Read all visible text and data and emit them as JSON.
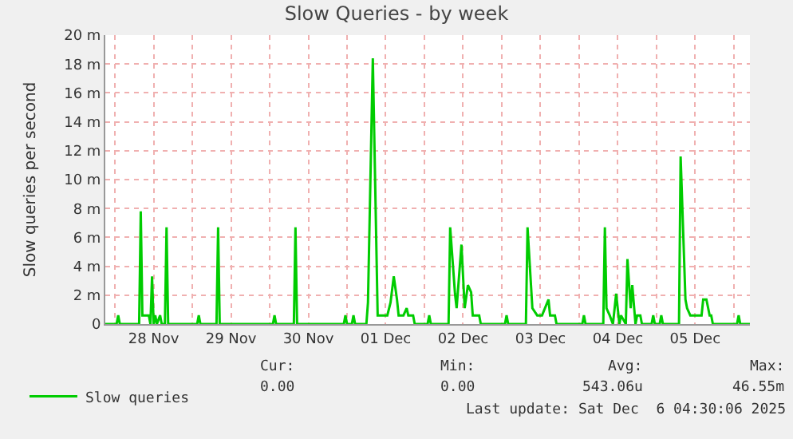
{
  "chart_data": {
    "type": "line",
    "title": "Slow Queries - by week",
    "ylabel": "Slow queries per second",
    "x": [
      "2025-11-27T21:00",
      "2025-11-28T00:30",
      "2025-11-28T01:00",
      "2025-11-28T01:30",
      "2025-11-28T07:30",
      "2025-11-28T08:00",
      "2025-11-28T08:30",
      "2025-11-28T09:30",
      "2025-11-28T10:30",
      "2025-11-28T11:00",
      "2025-11-28T11:30",
      "2025-11-28T12:00",
      "2025-11-28T12:30",
      "2025-11-28T13:00",
      "2025-11-28T14:00",
      "2025-11-28T14:30",
      "2025-11-28T15:30",
      "2025-11-28T16:00",
      "2025-11-28T16:30",
      "2025-11-29T01:30",
      "2025-11-29T02:00",
      "2025-11-29T02:30",
      "2025-11-29T07:30",
      "2025-11-29T08:00",
      "2025-11-29T08:30",
      "2025-11-30T01:00",
      "2025-11-30T01:30",
      "2025-11-30T02:00",
      "2025-11-30T07:30",
      "2025-11-30T08:00",
      "2025-11-30T08:30",
      "2025-11-30T23:00",
      "2025-11-30T23:30",
      "2025-12-01T00:00",
      "2025-12-01T01:30",
      "2025-12-01T02:00",
      "2025-12-01T02:30",
      "2025-12-01T06:00",
      "2025-12-01T06:30",
      "2025-12-01T08:00",
      "2025-12-01T09:30",
      "2025-12-01T11:30",
      "2025-12-01T12:30",
      "2025-12-01T13:30",
      "2025-12-01T14:30",
      "2025-12-01T15:30",
      "2025-12-01T16:00",
      "2025-12-01T17:30",
      "2025-12-01T18:30",
      "2025-12-01T19:00",
      "2025-12-01T20:00",
      "2025-12-01T20:30",
      "2025-12-01T21:00",
      "2025-12-02T01:00",
      "2025-12-02T01:30",
      "2025-12-02T02:00",
      "2025-12-02T07:30",
      "2025-12-02T08:00",
      "2025-12-02T09:30",
      "2025-12-02T10:00",
      "2025-12-02T11:30",
      "2025-12-02T12:30",
      "2025-12-02T13:30",
      "2025-12-02T14:30",
      "2025-12-02T15:00",
      "2025-12-02T16:00",
      "2025-12-02T17:00",
      "2025-12-02T17:30",
      "2025-12-03T01:00",
      "2025-12-03T01:30",
      "2025-12-03T02:00",
      "2025-12-03T07:30",
      "2025-12-03T08:00",
      "2025-12-03T09:30",
      "2025-12-03T11:00",
      "2025-12-03T12:30",
      "2025-12-03T14:30",
      "2025-12-03T15:00",
      "2025-12-03T16:30",
      "2025-12-03T17:00",
      "2025-12-04T01:00",
      "2025-12-04T01:30",
      "2025-12-04T02:00",
      "2025-12-04T07:30",
      "2025-12-04T08:00",
      "2025-12-04T08:30",
      "2025-12-04T09:30",
      "2025-12-04T10:30",
      "2025-12-04T11:30",
      "2025-12-04T12:30",
      "2025-12-04T13:00",
      "2025-12-04T14:30",
      "2025-12-04T15:00",
      "2025-12-04T16:00",
      "2025-12-04T16:30",
      "2025-12-04T17:30",
      "2025-12-04T18:00",
      "2025-12-04T19:00",
      "2025-12-04T19:30",
      "2025-12-04T22:30",
      "2025-12-04T23:00",
      "2025-12-04T23:30",
      "2025-12-05T01:00",
      "2025-12-05T01:30",
      "2025-12-05T02:00",
      "2025-12-05T07:00",
      "2025-12-05T07:30",
      "2025-12-05T09:00",
      "2025-12-05T09:30",
      "2025-12-05T10:30",
      "2025-12-05T12:00",
      "2025-12-05T14:00",
      "2025-12-05T14:30",
      "2025-12-05T15:30",
      "2025-12-05T16:30",
      "2025-12-05T17:00",
      "2025-12-05T17:30",
      "2025-12-06T01:00",
      "2025-12-06T01:30",
      "2025-12-06T02:00",
      "2025-12-06T05:00"
    ],
    "series": [
      {
        "name": "Slow queries",
        "color": "#00cc00",
        "values": [
          0,
          0,
          0.6,
          0,
          0,
          7.8,
          0.6,
          0.6,
          0.6,
          0,
          3.3,
          0,
          0.6,
          0,
          0.6,
          0,
          0,
          6.7,
          0,
          0,
          0.6,
          0,
          0,
          6.7,
          0,
          0,
          0.6,
          0,
          0,
          6.7,
          0,
          0,
          0.6,
          0,
          0,
          0.6,
          0,
          0,
          1.5,
          18.4,
          0.6,
          0.6,
          0.6,
          1.5,
          3.3,
          1.7,
          0.6,
          0.6,
          1.1,
          0.6,
          0.6,
          0.6,
          0,
          0,
          0.6,
          0,
          0,
          6.7,
          2.1,
          1.1,
          5.5,
          1.1,
          2.7,
          2.2,
          0.6,
          0.6,
          0.6,
          0,
          0,
          0.6,
          0,
          0,
          6.7,
          1.1,
          0.6,
          0.6,
          1.7,
          0.6,
          0.6,
          0,
          0,
          0.6,
          0,
          0,
          6.7,
          1.1,
          0.6,
          0,
          2.1,
          0,
          0.6,
          0,
          4.5,
          1.1,
          2.7,
          0,
          0.6,
          0.6,
          0,
          0,
          0.6,
          0,
          0,
          0.6,
          0,
          0,
          11.6,
          1.7,
          1.1,
          0.6,
          0.6,
          0.6,
          1.7,
          1.7,
          0.6,
          0.6,
          0,
          0,
          0.6,
          0,
          0
        ]
      }
    ],
    "xlim": [
      "2025-11-27T21:00",
      "2025-12-06T05:00"
    ],
    "xticks": [
      {
        "value": "2025-11-28T00:00",
        "label": null
      },
      {
        "value": "2025-11-28T12:00",
        "label": "28 Nov"
      },
      {
        "value": "2025-11-29T00:00",
        "label": null
      },
      {
        "value": "2025-11-29T12:00",
        "label": "29 Nov"
      },
      {
        "value": "2025-11-30T00:00",
        "label": null
      },
      {
        "value": "2025-11-30T12:00",
        "label": "30 Nov"
      },
      {
        "value": "2025-12-01T00:00",
        "label": null
      },
      {
        "value": "2025-12-01T12:00",
        "label": "01 Dec"
      },
      {
        "value": "2025-12-02T00:00",
        "label": null
      },
      {
        "value": "2025-12-02T12:00",
        "label": "02 Dec"
      },
      {
        "value": "2025-12-03T00:00",
        "label": null
      },
      {
        "value": "2025-12-03T12:00",
        "label": "03 Dec"
      },
      {
        "value": "2025-12-04T00:00",
        "label": null
      },
      {
        "value": "2025-12-04T12:00",
        "label": "04 Dec"
      },
      {
        "value": "2025-12-05T00:00",
        "label": null
      },
      {
        "value": "2025-12-05T12:00",
        "label": "05 Dec"
      },
      {
        "value": "2025-12-06T00:00",
        "label": null
      }
    ],
    "ylim": [
      0,
      20
    ],
    "yticks": [
      0,
      {
        "value": 2,
        "label": "2 m"
      },
      {
        "value": 4,
        "label": "4 m"
      },
      {
        "value": 6,
        "label": "6 m"
      },
      {
        "value": 8,
        "label": "8 m"
      },
      {
        "value": 10,
        "label": "10 m"
      },
      {
        "value": 12,
        "label": "12 m"
      },
      {
        "value": 14,
        "label": "14 m"
      },
      {
        "value": 16,
        "label": "16 m"
      },
      {
        "value": 18,
        "label": "18 m"
      },
      {
        "value": 20,
        "label": "20 m"
      }
    ],
    "grid": true,
    "legend": "bottom left",
    "marker": "none",
    "line_style": "solid",
    "annotations": [
      "Cur:",
      "0.00",
      "Min:",
      "0.00",
      "Avg:",
      "543.06u",
      "Max:",
      "46.55m",
      "Last update: Sat Dec  6 04:30:06 2025"
    ]
  }
}
